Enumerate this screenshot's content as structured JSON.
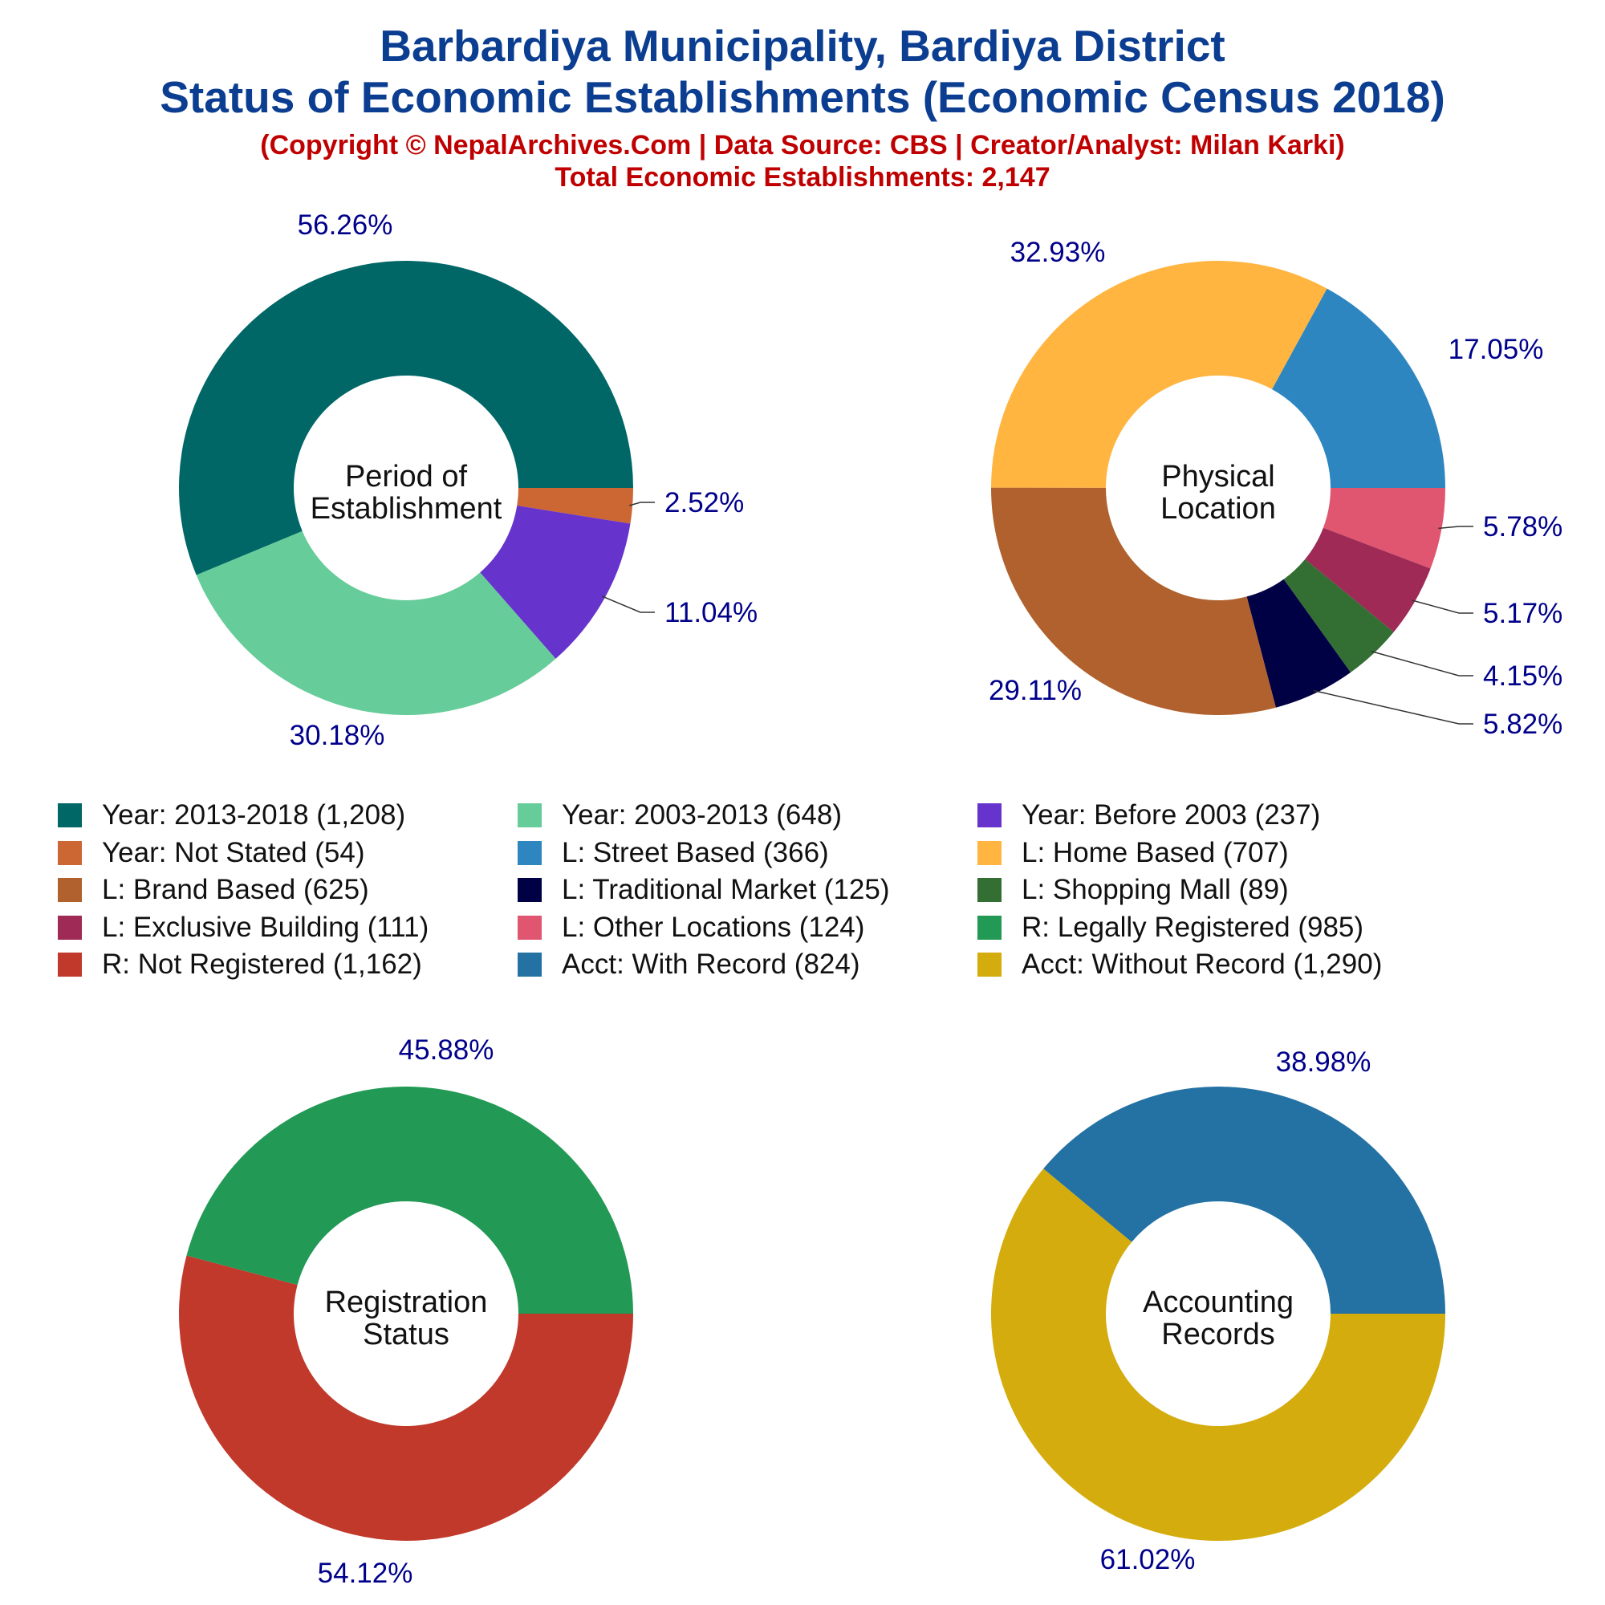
{
  "header": {
    "title_line1": "Barbardiya Municipality, Bardiya District",
    "title_line2": "Status of Economic Establishments (Economic Census 2018)",
    "copyright": "(Copyright © NepalArchives.Com | Data Source: CBS | Creator/Analyst: Milan Karki)",
    "total": "Total Economic Establishments: 2,147"
  },
  "legend": [
    {
      "label": "Year: 2013-2018 (1,208)",
      "color": "#006666"
    },
    {
      "label": "Year: 2003-2013 (648)",
      "color": "#66cc99"
    },
    {
      "label": "Year: Before 2003 (237)",
      "color": "#6633cc"
    },
    {
      "label": "Year: Not Stated (54)",
      "color": "#cc6633"
    },
    {
      "label": "L: Street Based (366)",
      "color": "#2e86c1"
    },
    {
      "label": "L: Home Based (707)",
      "color": "#ffb540"
    },
    {
      "label": "L: Brand Based (625)",
      "color": "#b0612d"
    },
    {
      "label": "L: Traditional Market (125)",
      "color": "#000044"
    },
    {
      "label": "L: Shopping Mall (89)",
      "color": "#336e33"
    },
    {
      "label": "L: Exclusive Building (111)",
      "color": "#9e2a55"
    },
    {
      "label": "L: Other Locations (124)",
      "color": "#e05570"
    },
    {
      "label": "R: Legally Registered (985)",
      "color": "#229954"
    },
    {
      "label": "R: Not Registered (1,162)",
      "color": "#c0392b"
    },
    {
      "label": "Acct: With Record (824)",
      "color": "#2471a3"
    },
    {
      "label": "Acct: Without Record (1,290)",
      "color": "#d4ac0d"
    }
  ],
  "chart_data": [
    {
      "type": "pie",
      "center_label": [
        "Period of",
        "Establishment"
      ],
      "slices": [
        {
          "name": "Year: Not Stated",
          "value": 54,
          "pct": "2.52%",
          "color": "#cc6633"
        },
        {
          "name": "Year: Before 2003",
          "value": 237,
          "pct": "11.04%",
          "color": "#6633cc"
        },
        {
          "name": "Year: 2003-2013",
          "value": 648,
          "pct": "30.18%",
          "color": "#66cc99"
        },
        {
          "name": "Year: 2013-2018",
          "value": 1208,
          "pct": "56.26%",
          "color": "#006666"
        }
      ]
    },
    {
      "type": "pie",
      "center_label": [
        "Physical",
        "Location"
      ],
      "slices": [
        {
          "name": "L: Other Locations",
          "value": 124,
          "pct": "5.78%",
          "color": "#e05570"
        },
        {
          "name": "L: Exclusive Building",
          "value": 111,
          "pct": "5.17%",
          "color": "#9e2a55"
        },
        {
          "name": "L: Shopping Mall",
          "value": 89,
          "pct": "4.15%",
          "color": "#336e33"
        },
        {
          "name": "L: Traditional Market",
          "value": 125,
          "pct": "5.82%",
          "color": "#000044"
        },
        {
          "name": "L: Brand Based",
          "value": 625,
          "pct": "29.11%",
          "color": "#b0612d"
        },
        {
          "name": "L: Home Based",
          "value": 707,
          "pct": "32.93%",
          "color": "#ffb540"
        },
        {
          "name": "L: Street Based",
          "value": 366,
          "pct": "17.05%",
          "color": "#2e86c1"
        }
      ]
    },
    {
      "type": "pie",
      "center_label": [
        "Registration",
        "Status"
      ],
      "slices": [
        {
          "name": "R: Not Registered",
          "value": 1162,
          "pct": "54.12%",
          "color": "#c0392b"
        },
        {
          "name": "R: Legally Registered",
          "value": 985,
          "pct": "45.88%",
          "color": "#229954"
        }
      ]
    },
    {
      "type": "pie",
      "center_label": [
        "Accounting",
        "Records"
      ],
      "slices": [
        {
          "name": "Acct: Without Record",
          "value": 1290,
          "pct": "61.02%",
          "color": "#d4ac0d"
        },
        {
          "name": "Acct: With Record",
          "value": 824,
          "pct": "38.98%",
          "color": "#2471a3"
        }
      ]
    }
  ]
}
